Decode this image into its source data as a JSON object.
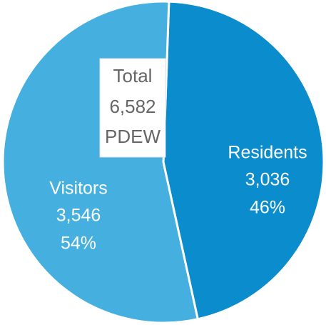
{
  "chart_data": {
    "type": "pie",
    "categories": [
      "Residents",
      "Visitors"
    ],
    "values": [
      46,
      54
    ],
    "value_labels": [
      "46%",
      "54%"
    ],
    "counts": [
      3036,
      3546
    ],
    "count_labels": [
      "3,036",
      "3,546"
    ],
    "colors": [
      "#0b8dcd",
      "#45afe0"
    ],
    "annotation": [
      "Total",
      "6,582",
      "PDEW"
    ]
  }
}
